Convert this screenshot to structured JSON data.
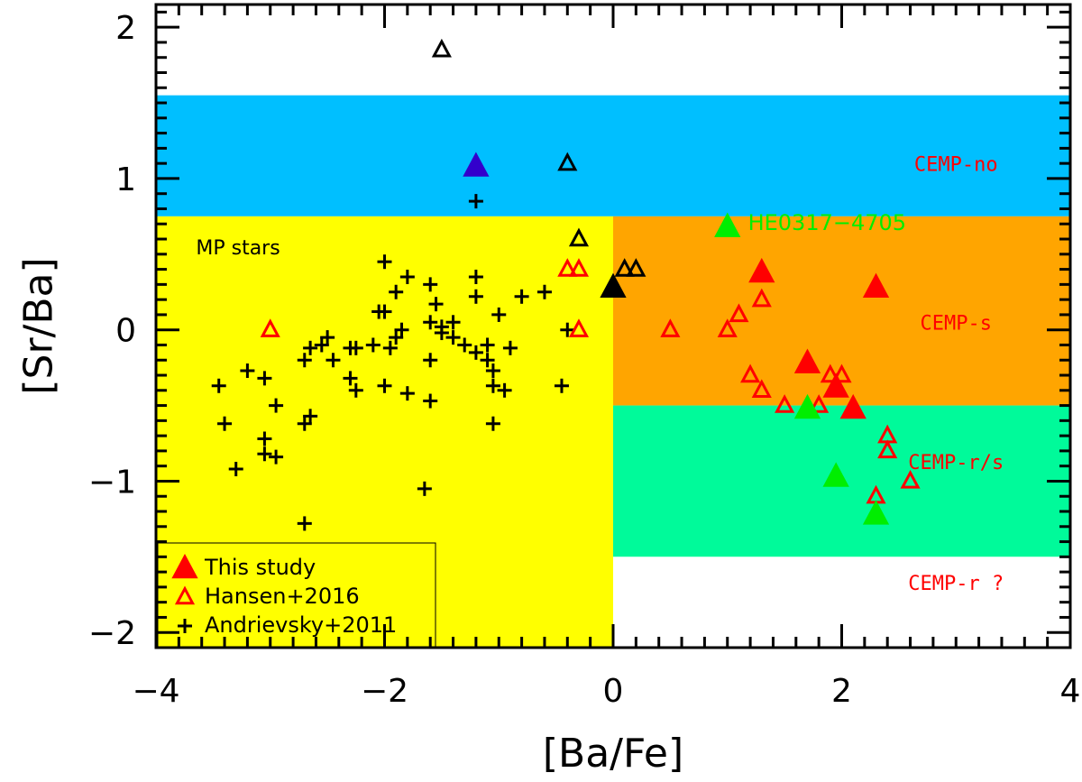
{
  "chart_data": {
    "type": "scatter",
    "xlabel": "[Ba/Fe]",
    "ylabel": "[Sr/Ba]",
    "xlim": [
      -4,
      4
    ],
    "ylim": [
      -2.1,
      2.15
    ],
    "xticks": [
      -4,
      -2,
      0,
      2,
      4
    ],
    "yticks": [
      -2,
      -1,
      0,
      1,
      2
    ],
    "tick_labels_x": [
      "−4",
      "−2",
      "0",
      "2",
      "4"
    ],
    "tick_labels_y": [
      "−2",
      "−1",
      "0",
      "1",
      "2"
    ],
    "regions": [
      {
        "name": "CEMP-no",
        "x": [
          -4,
          4
        ],
        "y": [
          0.75,
          1.55
        ],
        "color": "#00BFFF",
        "label": "CEMP-no",
        "label_xy": [
          3.0,
          1.05
        ]
      },
      {
        "name": "MP stars",
        "x": [
          -4,
          0
        ],
        "y": [
          -2.1,
          0.75
        ],
        "color": "#FFFF00",
        "label": "MP stars",
        "label_xy": [
          -3.65,
          0.5
        ]
      },
      {
        "name": "CEMP-s",
        "x": [
          0,
          4
        ],
        "y": [
          -0.5,
          0.75
        ],
        "color": "#FFA500",
        "label": "CEMP-s",
        "label_xy": [
          3.0,
          0.0
        ]
      },
      {
        "name": "CEMP-r/s",
        "x": [
          0,
          4
        ],
        "y": [
          -1.5,
          -0.5
        ],
        "color": "#00FA9A",
        "label": "CEMP-r/s",
        "label_xy": [
          3.0,
          -0.92
        ]
      },
      {
        "name": "CEMP-r ?",
        "x": [
          0,
          4
        ],
        "y": [
          -2.1,
          -1.5
        ],
        "color": "#FFFFFF",
        "label": "CEMP-r ?",
        "label_xy": [
          3.0,
          -1.72
        ]
      }
    ],
    "region_label_color": "#FF0000",
    "annotation": {
      "text": "HE0317−4705",
      "x": 1.18,
      "y": 0.66,
      "color": "#00EE00"
    },
    "series": [
      {
        "name": "This study",
        "marker": "filled-triangle",
        "points": [
          {
            "x": 1.3,
            "y": 0.38,
            "color": "#FF0000"
          },
          {
            "x": 2.3,
            "y": 0.28,
            "color": "#FF0000"
          },
          {
            "x": 1.7,
            "y": -0.22,
            "color": "#FF0000"
          },
          {
            "x": 1.95,
            "y": -0.38,
            "color": "#FF0000"
          },
          {
            "x": 2.1,
            "y": -0.52,
            "color": "#FF0000"
          },
          {
            "x": 1.0,
            "y": 0.68,
            "color": "#00EE00"
          },
          {
            "x": 1.7,
            "y": -0.52,
            "color": "#00EE00"
          },
          {
            "x": 1.95,
            "y": -0.97,
            "color": "#00EE00"
          },
          {
            "x": 2.3,
            "y": -1.22,
            "color": "#00EE00"
          },
          {
            "x": -1.2,
            "y": 1.08,
            "color": "#3300CC"
          },
          {
            "x": 0.0,
            "y": 0.28,
            "color": "#000000"
          }
        ]
      },
      {
        "name": "Hansen+2016",
        "marker": "open-triangle",
        "points": [
          {
            "x": -3.0,
            "y": 0.0,
            "color": "#FF0000"
          },
          {
            "x": -0.4,
            "y": 0.4,
            "color": "#FF0000"
          },
          {
            "x": -0.3,
            "y": 0.4,
            "color": "#FF0000"
          },
          {
            "x": -0.3,
            "y": 0.0,
            "color": "#FF0000"
          },
          {
            "x": 0.5,
            "y": 0.0,
            "color": "#FF0000"
          },
          {
            "x": 1.0,
            "y": 0.0,
            "color": "#FF0000"
          },
          {
            "x": 1.1,
            "y": 0.1,
            "color": "#FF0000"
          },
          {
            "x": 1.3,
            "y": 0.2,
            "color": "#FF0000"
          },
          {
            "x": 1.2,
            "y": -0.3,
            "color": "#FF0000"
          },
          {
            "x": 1.3,
            "y": -0.4,
            "color": "#FF0000"
          },
          {
            "x": 1.5,
            "y": -0.5,
            "color": "#FF0000"
          },
          {
            "x": 1.8,
            "y": -0.5,
            "color": "#FF0000"
          },
          {
            "x": 1.9,
            "y": -0.3,
            "color": "#FF0000"
          },
          {
            "x": 2.0,
            "y": -0.3,
            "color": "#FF0000"
          },
          {
            "x": 2.4,
            "y": -0.7,
            "color": "#FF0000"
          },
          {
            "x": 2.4,
            "y": -0.8,
            "color": "#FF0000"
          },
          {
            "x": 2.6,
            "y": -1.0,
            "color": "#FF0000"
          },
          {
            "x": 2.3,
            "y": -1.1,
            "color": "#FF0000"
          },
          {
            "x": -1.5,
            "y": 1.85,
            "color": "#000000"
          },
          {
            "x": -0.4,
            "y": 1.1,
            "color": "#000000"
          },
          {
            "x": -0.3,
            "y": 0.6,
            "color": "#000000"
          },
          {
            "x": 0.1,
            "y": 0.4,
            "color": "#000000"
          },
          {
            "x": 0.2,
            "y": 0.4,
            "color": "#000000"
          }
        ]
      },
      {
        "name": "Andrievsky+2011",
        "marker": "plus",
        "color": "#000000",
        "points": [
          {
            "x": -1.2,
            "y": 0.85
          },
          {
            "x": -2.0,
            "y": 0.45
          },
          {
            "x": -1.8,
            "y": 0.35
          },
          {
            "x": -1.6,
            "y": 0.3
          },
          {
            "x": -1.2,
            "y": 0.35
          },
          {
            "x": -1.2,
            "y": 0.22
          },
          {
            "x": -0.8,
            "y": 0.22
          },
          {
            "x": -0.6,
            "y": 0.25
          },
          {
            "x": -1.9,
            "y": 0.25
          },
          {
            "x": -1.55,
            "y": 0.17
          },
          {
            "x": -2.05,
            "y": 0.12
          },
          {
            "x": -2.0,
            "y": 0.12
          },
          {
            "x": -1.6,
            "y": 0.05
          },
          {
            "x": -1.5,
            "y": 0.02
          },
          {
            "x": -1.5,
            "y": -0.02
          },
          {
            "x": -1.4,
            "y": 0.05
          },
          {
            "x": -1.0,
            "y": 0.1
          },
          {
            "x": -1.85,
            "y": 0.0
          },
          {
            "x": -1.9,
            "y": -0.05
          },
          {
            "x": -2.5,
            "y": -0.05
          },
          {
            "x": -2.55,
            "y": -0.1
          },
          {
            "x": -2.3,
            "y": -0.12
          },
          {
            "x": -2.25,
            "y": -0.12
          },
          {
            "x": -2.1,
            "y": -0.1
          },
          {
            "x": -1.95,
            "y": -0.12
          },
          {
            "x": -1.3,
            "y": -0.1
          },
          {
            "x": -1.2,
            "y": -0.15
          },
          {
            "x": -1.1,
            "y": -0.1
          },
          {
            "x": -0.9,
            "y": -0.12
          },
          {
            "x": -2.65,
            "y": -0.12
          },
          {
            "x": -2.7,
            "y": -0.2
          },
          {
            "x": -1.6,
            "y": -0.2
          },
          {
            "x": -1.1,
            "y": -0.2
          },
          {
            "x": -2.45,
            "y": -0.2
          },
          {
            "x": -3.2,
            "y": -0.27
          },
          {
            "x": -3.05,
            "y": -0.32
          },
          {
            "x": -2.3,
            "y": -0.32
          },
          {
            "x": -2.0,
            "y": -0.37
          },
          {
            "x": -2.25,
            "y": -0.4
          },
          {
            "x": -1.05,
            "y": -0.27
          },
          {
            "x": -1.05,
            "y": -0.37
          },
          {
            "x": -0.95,
            "y": -0.4
          },
          {
            "x": -0.45,
            "y": -0.37
          },
          {
            "x": -1.4,
            "y": -0.05
          },
          {
            "x": -3.45,
            "y": -0.37
          },
          {
            "x": -1.8,
            "y": -0.42
          },
          {
            "x": -1.6,
            "y": -0.47
          },
          {
            "x": -2.95,
            "y": -0.5
          },
          {
            "x": -3.4,
            "y": -0.62
          },
          {
            "x": -2.65,
            "y": -0.57
          },
          {
            "x": -2.7,
            "y": -0.62
          },
          {
            "x": -1.05,
            "y": -0.62
          },
          {
            "x": -3.05,
            "y": -0.72
          },
          {
            "x": -3.05,
            "y": -0.82
          },
          {
            "x": -2.95,
            "y": -0.84
          },
          {
            "x": -3.3,
            "y": -0.92
          },
          {
            "x": -1.65,
            "y": -1.05
          },
          {
            "x": -2.7,
            "y": -1.28
          },
          {
            "x": -0.4,
            "y": 0.0
          }
        ]
      }
    ],
    "legend": {
      "position": "bottom-left",
      "entries": [
        {
          "label": "This study",
          "marker": "filled-triangle",
          "color": "#FF0000"
        },
        {
          "label": "Hansen+2016",
          "marker": "open-triangle",
          "color": "#FF0000"
        },
        {
          "label": "Andrievsky+2011",
          "marker": "plus",
          "color": "#000000"
        }
      ]
    }
  }
}
